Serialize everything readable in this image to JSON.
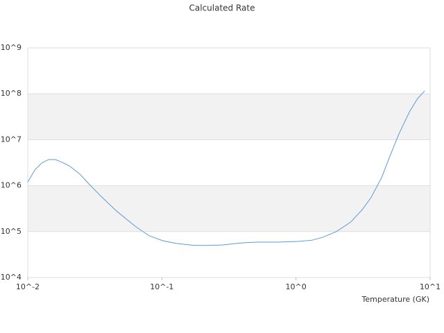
{
  "chart_data": {
    "type": "line",
    "title": "Calculated Rate",
    "x_label": "Temperature (GK)",
    "log_x": true,
    "log_y": true,
    "grid": true,
    "band_color": "#f2f2f2",
    "xlim": [
      0.01,
      10
    ],
    "ylim": [
      10000,
      1000000000
    ],
    "xticks": [
      {
        "value": 0.01,
        "label": "10^-2"
      },
      {
        "value": 0.1,
        "label": "10^-1"
      },
      {
        "value": 1,
        "label": "10^0"
      },
      {
        "value": 10,
        "label": "10^1"
      }
    ],
    "yticks": [
      {
        "value": 10000,
        "label": "10^4"
      },
      {
        "value": 100000,
        "label": "10^5"
      },
      {
        "value": 1000000,
        "label": "10^6"
      },
      {
        "value": 10000000,
        "label": "10^7"
      },
      {
        "value": 100000000,
        "label": "10^8"
      },
      {
        "value": 1000000000,
        "label": "10^9"
      }
    ],
    "x": [
      0.01,
      0.0113,
      0.0127,
      0.0143,
      0.0161,
      0.0181,
      0.0204,
      0.0244,
      0.0285,
      0.0349,
      0.0459,
      0.0634,
      0.0804,
      0.102,
      0.129,
      0.175,
      0.221,
      0.281,
      0.402,
      0.51,
      0.728,
      1.04,
      1.32,
      1.58,
      2.0,
      2.55,
      3.12,
      3.64,
      4.35,
      5.0,
      5.86,
      7.0,
      8.07,
      9.1
    ],
    "series": [
      {
        "color": "#5b9bd5",
        "values": [
          1200000,
          2200000,
          3100000,
          3700000,
          3700000,
          3200000,
          2700000,
          1800000,
          1100000,
          600000,
          280000,
          130000,
          81000,
          63000,
          55000,
          50000,
          50000,
          51000,
          57000,
          59000,
          59000,
          61000,
          65000,
          75000,
          100000,
          160000,
          300000,
          560000,
          1500000,
          4300000,
          13500000,
          40000000,
          79000000,
          115000000
        ]
      }
    ]
  }
}
